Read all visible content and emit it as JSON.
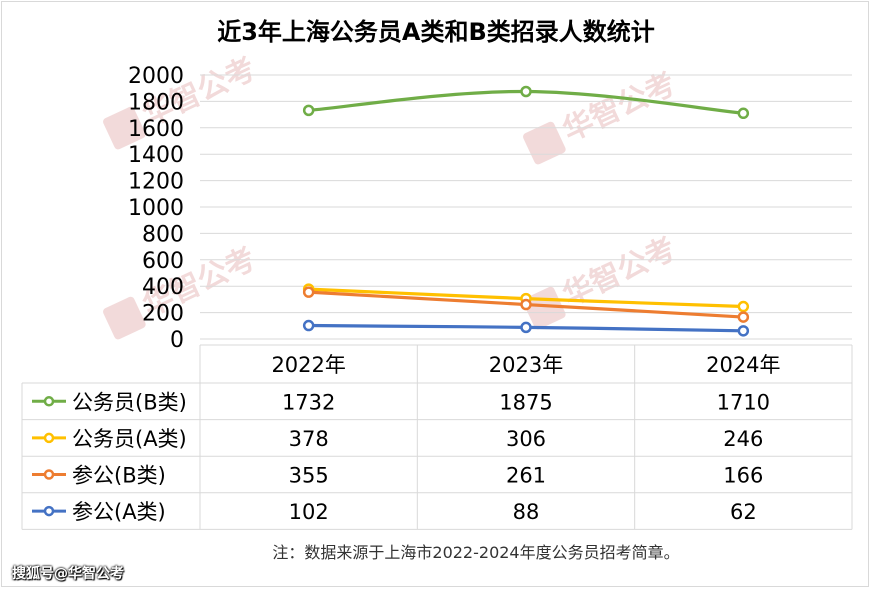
{
  "title": "近3年上海公务员A类和B类招录人数统计",
  "note": "注：数据来源于上海市2022-2024年度公务员招考简章。",
  "watermark_text": "华智公考",
  "footer_credit": "搜狐号@华智公考",
  "chart_data": {
    "type": "line",
    "categories": [
      "2022年",
      "2023年",
      "2024年"
    ],
    "series": [
      {
        "name": "公务员(B类)",
        "values": [
          1732,
          1875,
          1710
        ],
        "color": "#70ad47"
      },
      {
        "name": "公务员(A类)",
        "values": [
          378,
          306,
          246
        ],
        "color": "#ffc000"
      },
      {
        "name": "参公(B类)",
        "values": [
          355,
          261,
          166
        ],
        "color": "#ed7d31"
      },
      {
        "name": "参公(A类)",
        "values": [
          102,
          88,
          62
        ],
        "color": "#4472c4"
      }
    ],
    "yticks": [
      "0",
      "200",
      "400",
      "600",
      "800",
      "1000",
      "1200",
      "1400",
      "1600",
      "1800",
      "2000"
    ],
    "ylim": [
      0,
      2000
    ],
    "grid": true,
    "legend": "data-table"
  }
}
